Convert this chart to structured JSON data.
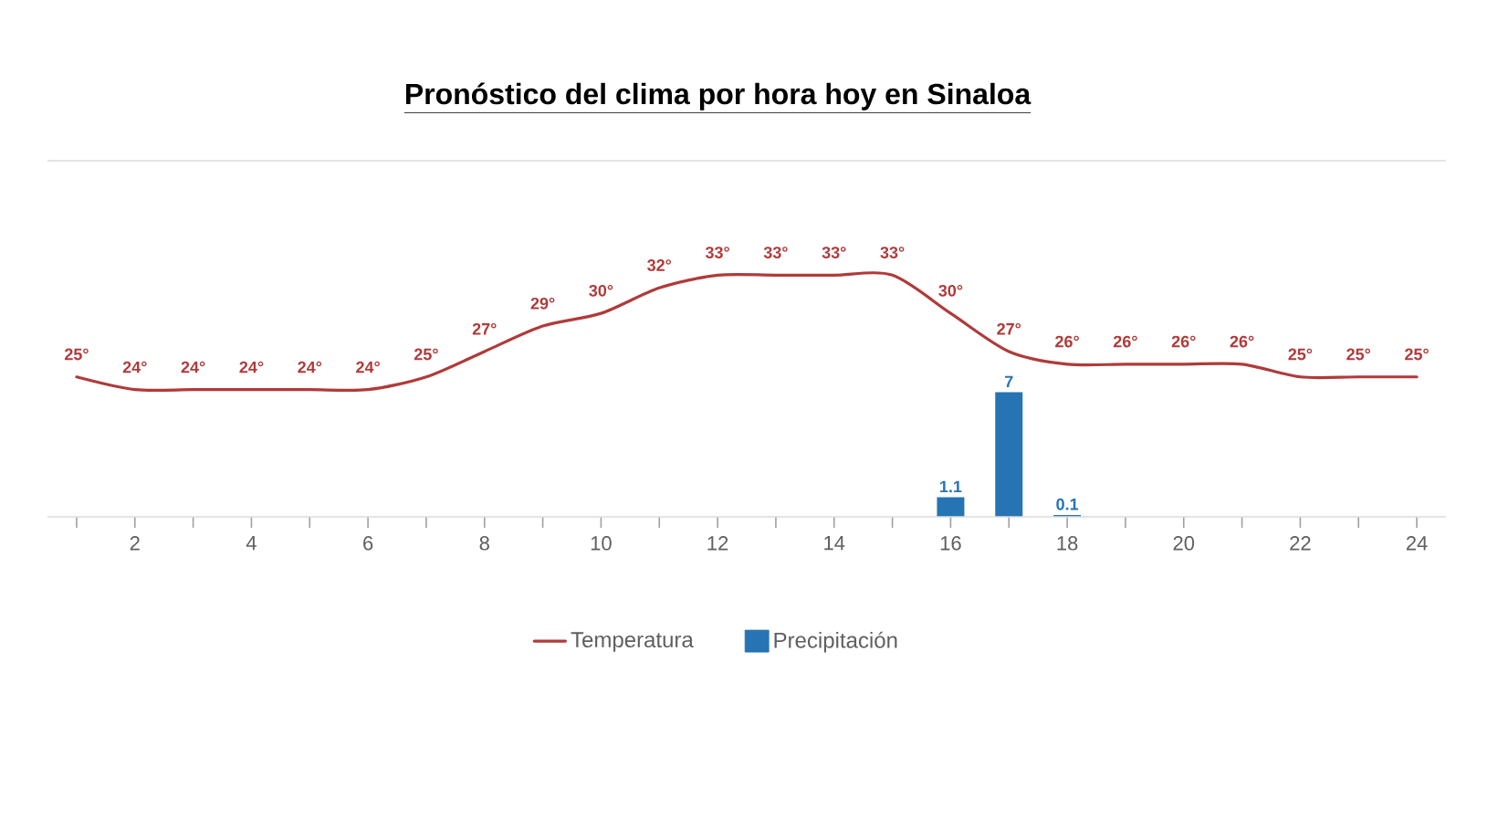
{
  "chart_data": {
    "type": "line",
    "title": "Pronóstico del clima por hora hoy en Sinaloa",
    "x": [
      1,
      2,
      3,
      4,
      5,
      6,
      7,
      8,
      9,
      10,
      11,
      12,
      13,
      14,
      15,
      16,
      17,
      18,
      19,
      20,
      21,
      22,
      23,
      24
    ],
    "xlim": [
      0.5,
      24.5
    ],
    "xticks": [
      {
        "value": 1,
        "label": null
      },
      2,
      {
        "value": 3,
        "label": null
      },
      4,
      {
        "value": 5,
        "label": null
      },
      6,
      {
        "value": 7,
        "label": null
      },
      8,
      {
        "value": 9,
        "label": null
      },
      10,
      {
        "value": 11,
        "label": null
      },
      12,
      {
        "value": 13,
        "label": null
      },
      14,
      {
        "value": 15,
        "label": null
      },
      16,
      {
        "value": 17,
        "label": null
      },
      18,
      {
        "value": 19,
        "label": null
      },
      20,
      {
        "value": 21,
        "label": null
      },
      22,
      {
        "value": 23,
        "label": null
      },
      24
    ],
    "ylim": [
      14,
      42
    ],
    "y2lim": [
      0,
      20
    ],
    "tick_labels": "x",
    "legend": "bottom",
    "series": [
      {
        "name": "Temperatura",
        "color": "#b03a3a",
        "values": [
          25,
          24,
          24,
          24,
          24,
          24,
          25,
          27,
          29,
          30,
          32,
          33,
          33,
          33,
          33,
          30,
          27,
          26,
          26,
          26,
          26,
          25,
          25,
          25
        ],
        "value_labels": [
          "25°",
          "24°",
          "24°",
          "24°",
          "24°",
          "24°",
          "25°",
          "27°",
          "29°",
          "30°",
          "32°",
          "33°",
          "33°",
          "33°",
          "33°",
          "30°",
          "27°",
          "26°",
          "26°",
          "26°",
          "26°",
          "25°",
          "25°",
          "25°"
        ]
      },
      {
        "name": "Precipitación",
        "type": "bar",
        "axis": "y2",
        "color": "#2674b3",
        "values": [
          null,
          null,
          null,
          null,
          null,
          null,
          null,
          null,
          null,
          null,
          null,
          null,
          null,
          null,
          null,
          1.1,
          7,
          0.1,
          null,
          null,
          null,
          null,
          null,
          null
        ],
        "value_labels": [
          null,
          null,
          null,
          null,
          null,
          null,
          null,
          null,
          null,
          null,
          null,
          null,
          null,
          null,
          null,
          "1.1",
          "7",
          "0.1",
          null,
          null,
          null,
          null,
          null,
          null
        ]
      }
    ]
  }
}
